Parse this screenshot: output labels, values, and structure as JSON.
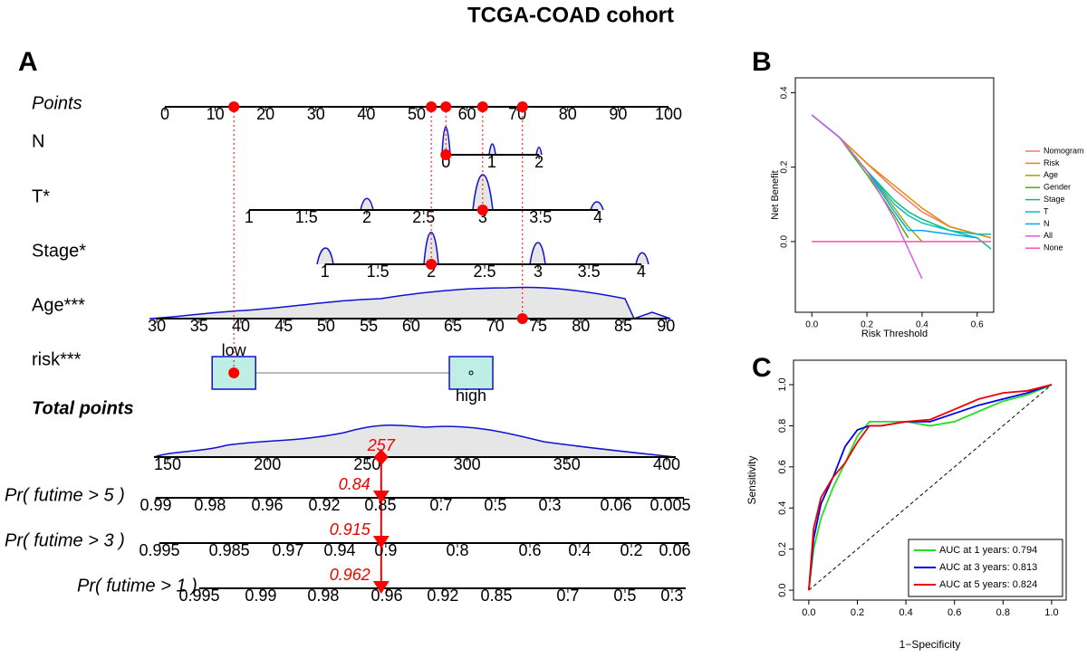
{
  "title": "TCGA-COAD cohort",
  "chart_data": [
    {
      "type": "nomogram",
      "panel": "A",
      "points_axis": {
        "label": "Points",
        "ticks": [
          0,
          10,
          20,
          30,
          40,
          50,
          60,
          70,
          80,
          90,
          100
        ]
      },
      "variables": [
        {
          "name": "N",
          "levels": [
            0,
            1,
            2
          ],
          "points": [
            55.8,
            64.9,
            74.3
          ],
          "selected_points": 55.8
        },
        {
          "name": "T*",
          "levels": [
            1,
            1.5,
            2,
            2.5,
            3,
            3.5,
            4
          ],
          "points": [
            16.7,
            28.1,
            40.1,
            51.4,
            63.1,
            74.6,
            86.0
          ],
          "selected_points": 63.1
        },
        {
          "name": "Stage*",
          "levels": [
            1,
            1.5,
            2,
            2.5,
            3,
            3.5,
            4
          ],
          "points": [
            31.8,
            42.3,
            52.9,
            63.5,
            74.1,
            84.2,
            94.6
          ],
          "selected_points": 52.9
        },
        {
          "name": "Age***",
          "levels": [
            30,
            35,
            40,
            45,
            50,
            55,
            60,
            65,
            70,
            75,
            80,
            85,
            90
          ],
          "points": [
            -1.6,
            6.8,
            15.1,
            23.6,
            32.0,
            40.5,
            48.9,
            57.2,
            65.6,
            74.1,
            82.6,
            91.0,
            99.5
          ],
          "selected_points": 71.0
        },
        {
          "name": "risk***",
          "levels": [
            "low",
            "high"
          ],
          "points": [
            13.7,
            60.8
          ],
          "selected_points": 13.7
        }
      ],
      "total_points": {
        "label": "Total points",
        "ticks": [
          150,
          200,
          250,
          300,
          350,
          400
        ],
        "value": 257
      },
      "probabilities": [
        {
          "label": "Pr( futime > 5 )",
          "levels": [
            0.99,
            0.98,
            0.96,
            0.92,
            0.85,
            0.7,
            0.5,
            0.3,
            0.06,
            0.005
          ],
          "total_points": [
            144.1,
            171.3,
            199.9,
            228.5,
            256.6,
            287.0,
            314.2,
            341.5,
            374.6,
            401.8
          ],
          "value": 0.84
        },
        {
          "label": "Pr( futime > 3 )",
          "levels": [
            0.995,
            0.985,
            0.97,
            0.94,
            0.9,
            0.8,
            0.6,
            0.4,
            0.2,
            0.06
          ],
          "total_points": [
            145.9,
            180.9,
            210.3,
            236.2,
            259.3,
            295.2,
            331.5,
            356.4,
            382.3,
            404.1
          ],
          "value": 0.915
        },
        {
          "label": "Pr( futime > 1 )",
          "levels": [
            0.995,
            0.99,
            0.98,
            0.96,
            0.92,
            0.85,
            0.7,
            0.5,
            0.3
          ],
          "total_points": [
            165.9,
            196.7,
            228.0,
            259.8,
            287.9,
            314.7,
            350.5,
            379.1,
            402.7
          ],
          "value": 0.962
        }
      ]
    },
    {
      "type": "line",
      "panel": "B",
      "x_label": "Risk Threshold",
      "y_label": "Net Benefit",
      "x": [
        0,
        0.1,
        0.2,
        0.3,
        0.35,
        0.4,
        0.5,
        0.6,
        0.65
      ],
      "xlim": [
        -0.06,
        0.66
      ],
      "ylim": [
        -0.19,
        0.44
      ],
      "xticks": [
        {
          "value": 0,
          "label": "0.0"
        },
        0.2,
        0.4,
        0.6
      ],
      "yticks": [
        {
          "value": 0,
          "label": "0.0"
        },
        0.2,
        0.4
      ],
      "legend": "right",
      "series": [
        {
          "name": "Nomogram",
          "color": "#F8766D",
          "values": [
            0.34,
            0.28,
            0.21,
            0.14,
            0.11,
            0.08,
            0.04,
            0.02,
            0.01
          ]
        },
        {
          "name": "Risk",
          "color": "#E08B00",
          "values": [
            0.34,
            0.28,
            0.21,
            0.15,
            0.12,
            0.09,
            0.04,
            0.02,
            0.01
          ]
        },
        {
          "name": "Age",
          "color": "#A3A500",
          "values": [
            0.34,
            0.28,
            0.19,
            0.09,
            0.04,
            0,
            null,
            null,
            null
          ]
        },
        {
          "name": "Gender",
          "color": "#39B600",
          "values": [
            0.34,
            0.28,
            0.18,
            0.07,
            0.01,
            null,
            null,
            null,
            null
          ]
        },
        {
          "name": "Stage",
          "color": "#00BF7D",
          "values": [
            0.34,
            0.28,
            0.19,
            0.11,
            0.08,
            0.06,
            0.03,
            0.01,
            -0.02
          ]
        },
        {
          "name": "T",
          "color": "#00BFC4",
          "values": [
            0.34,
            0.28,
            0.19,
            0.1,
            0.07,
            0.05,
            0.03,
            0.02,
            0.02
          ]
        },
        {
          "name": "N",
          "color": "#00A5FF",
          "values": [
            0.34,
            0.28,
            0.19,
            0.08,
            0.03,
            0.03,
            0.02,
            0.01,
            null
          ]
        },
        {
          "name": "All",
          "color": "#D55EE8",
          "values": [
            0.34,
            0.28,
            0.19,
            0.06,
            -0.02,
            -0.1,
            null,
            null,
            null
          ]
        },
        {
          "name": "None",
          "color": "#FF4FB4",
          "values": [
            0,
            0,
            0,
            0,
            0,
            0,
            0,
            0,
            0
          ]
        }
      ]
    },
    {
      "type": "line",
      "panel": "C",
      "x_label": "1−Specificity",
      "y_label": "Sensitivity",
      "x": [
        0,
        0.02,
        0.05,
        0.1,
        0.15,
        0.2,
        0.25,
        0.3,
        0.4,
        0.5,
        0.6,
        0.7,
        0.8,
        0.9,
        1.0
      ],
      "xlim": [
        -0.063,
        1.06
      ],
      "ylim": [
        -0.048,
        1.119
      ],
      "xticks": [
        {
          "value": 0,
          "label": "0.0"
        },
        0.2,
        0.4,
        0.6,
        0.8,
        {
          "value": 1,
          "label": "1.0"
        }
      ],
      "yticks": [
        {
          "value": 0,
          "label": "0.0"
        },
        0.2,
        0.4,
        0.6,
        0.8,
        {
          "value": 1,
          "label": "1.0"
        }
      ],
      "legend": "bottom-right",
      "series": [
        {
          "name": "AUC at 1 years: 0.794",
          "color": "#22DD22",
          "values": [
            0,
            0.2,
            0.35,
            0.5,
            0.62,
            0.75,
            0.82,
            0.82,
            0.82,
            0.8,
            0.82,
            0.87,
            0.92,
            0.95,
            1
          ]
        },
        {
          "name": "AUC at 3 years: 0.813",
          "color": "#0000EE",
          "values": [
            0,
            0.25,
            0.42,
            0.55,
            0.7,
            0.78,
            0.8,
            0.8,
            0.82,
            0.82,
            0.86,
            0.9,
            0.93,
            0.96,
            1
          ]
        },
        {
          "name": "AUC at 5 years: 0.824",
          "color": "#EE0000",
          "values": [
            0,
            0.3,
            0.45,
            0.55,
            0.62,
            0.72,
            0.8,
            0.8,
            0.82,
            0.83,
            0.88,
            0.93,
            0.96,
            0.97,
            1
          ]
        }
      ]
    }
  ]
}
